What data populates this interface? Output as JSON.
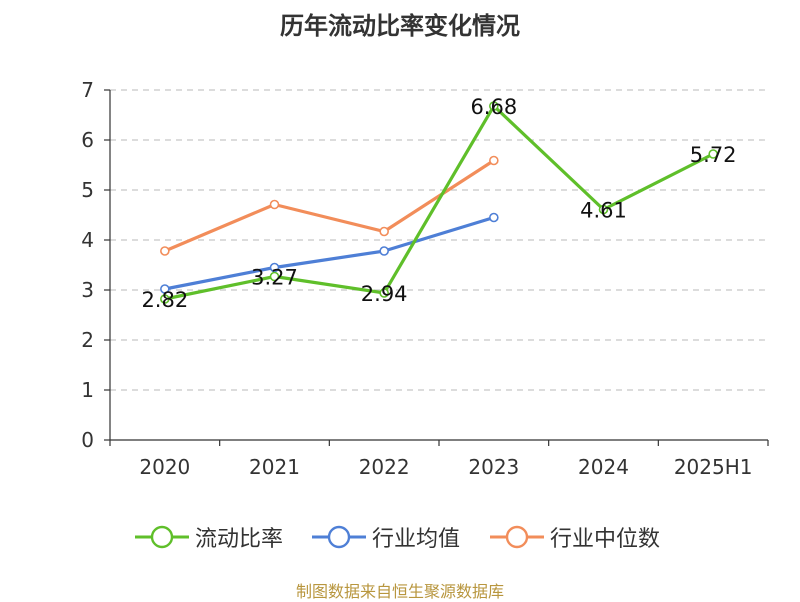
{
  "title": "历年流动比率变化情况",
  "source_text": "制图数据来自恒生聚源数据库",
  "colors": {
    "axis": "#333333",
    "grid": "#c8c8c8"
  },
  "chart_data": {
    "type": "line",
    "title": "历年流动比率变化情况",
    "categories": [
      "2020",
      "2021",
      "2022",
      "2023",
      "2024",
      "2025H1"
    ],
    "ylim": [
      0,
      7
    ],
    "yticks": [
      0,
      1,
      2,
      3,
      4,
      5,
      6,
      7
    ],
    "grid": true,
    "legend_position": "bottom",
    "series": [
      {
        "name": "流动比率",
        "color": "#5fbf2a",
        "values": [
          2.82,
          3.27,
          2.94,
          6.68,
          4.61,
          5.72
        ],
        "labels": [
          "2.82",
          "3.27",
          "2.94",
          "6.68",
          "4.61",
          "5.72"
        ],
        "show_labels": true
      },
      {
        "name": "行业均值",
        "color": "#4e7fd6",
        "values": [
          3.02,
          3.45,
          3.78,
          4.45,
          null,
          null
        ],
        "show_labels": false
      },
      {
        "name": "行业中位数",
        "color": "#f28d5a",
        "values": [
          3.78,
          4.71,
          4.17,
          5.59,
          null,
          null
        ],
        "show_labels": false
      }
    ]
  }
}
